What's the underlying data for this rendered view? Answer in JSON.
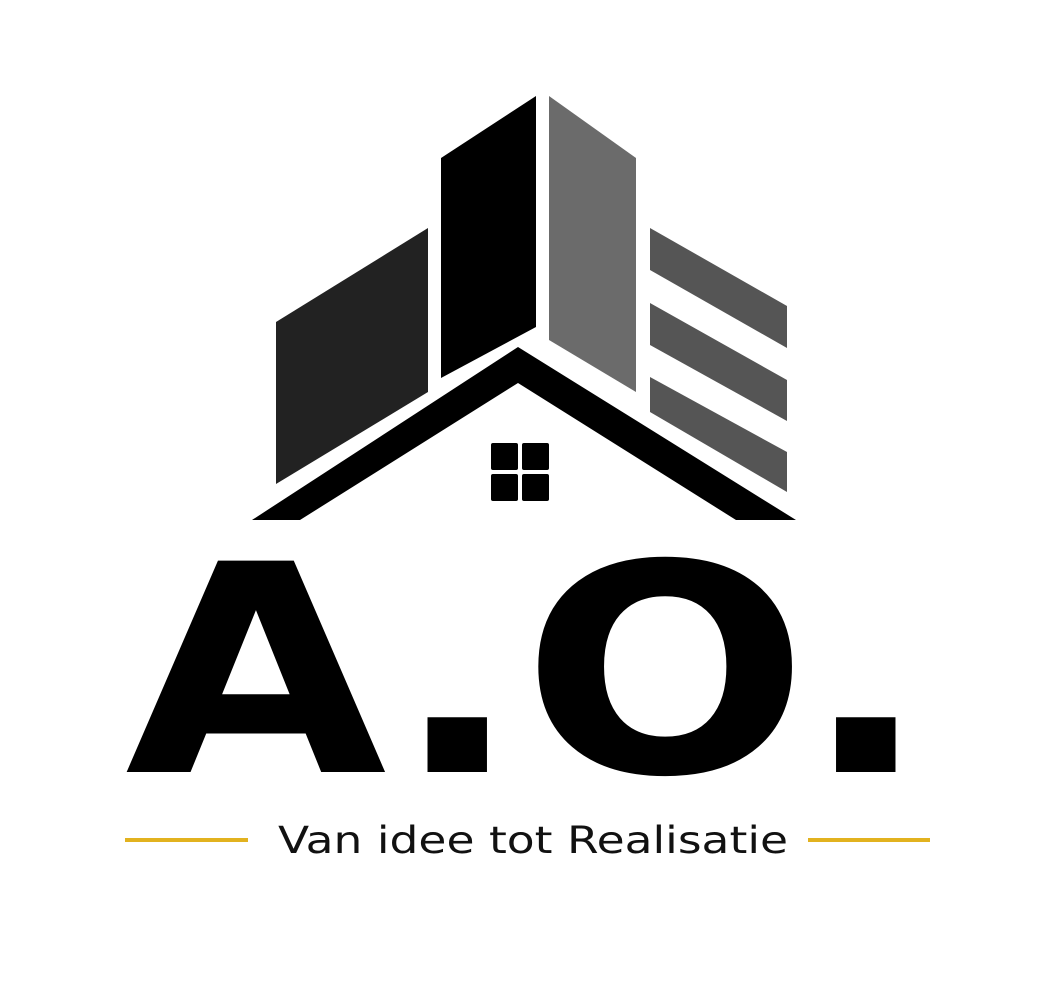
{
  "logo": {
    "mark": "A.O.",
    "tagline": "Van idee tot Realisatie"
  }
}
